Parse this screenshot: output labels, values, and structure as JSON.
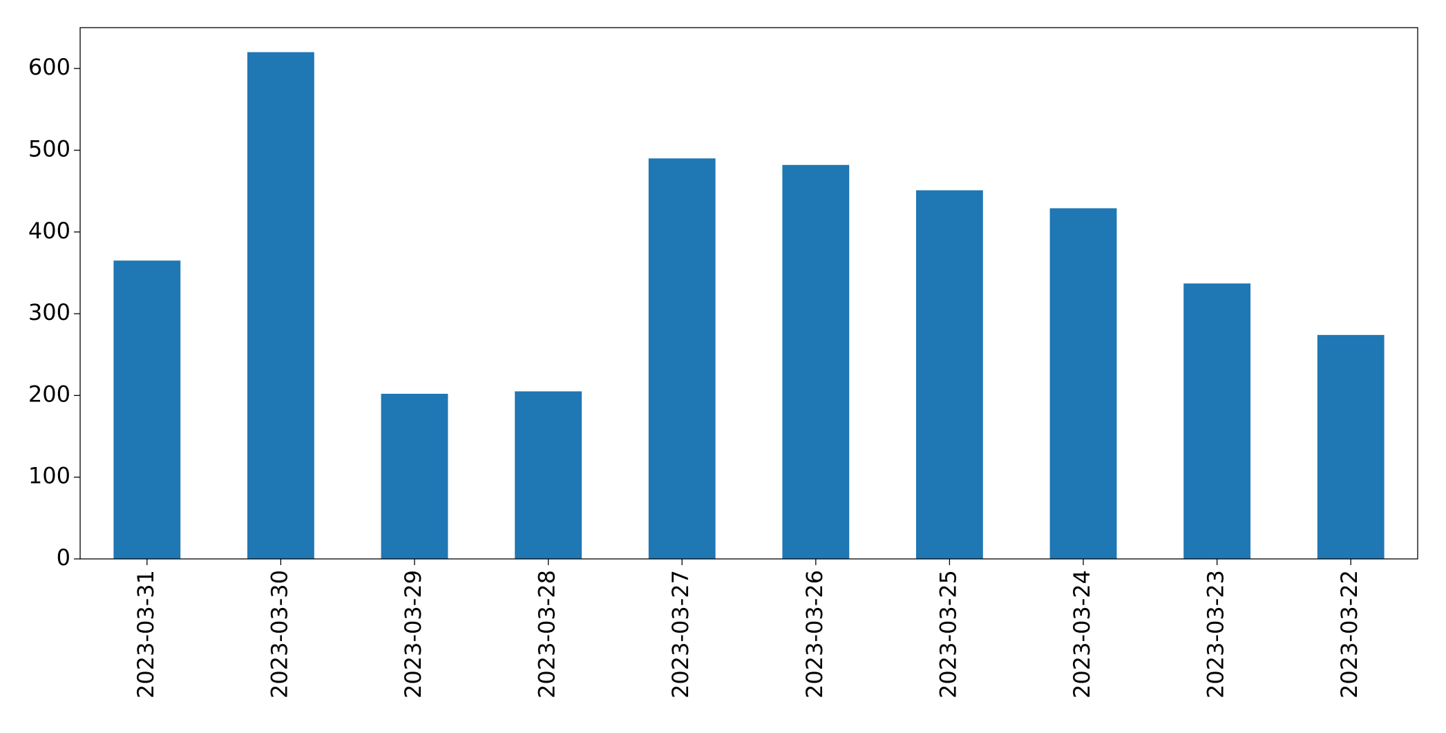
{
  "chart_data": {
    "type": "bar",
    "categories": [
      "2023-03-31",
      "2023-03-30",
      "2023-03-29",
      "2023-03-28",
      "2023-03-27",
      "2023-03-26",
      "2023-03-25",
      "2023-03-24",
      "2023-03-23",
      "2023-03-22"
    ],
    "values": [
      365,
      620,
      202,
      205,
      490,
      482,
      451,
      429,
      337,
      274
    ],
    "color": "#1f77b4",
    "ylim": [
      0,
      650
    ],
    "yticks": [
      0,
      100,
      200,
      300,
      400,
      500,
      600
    ],
    "grid": false
  }
}
